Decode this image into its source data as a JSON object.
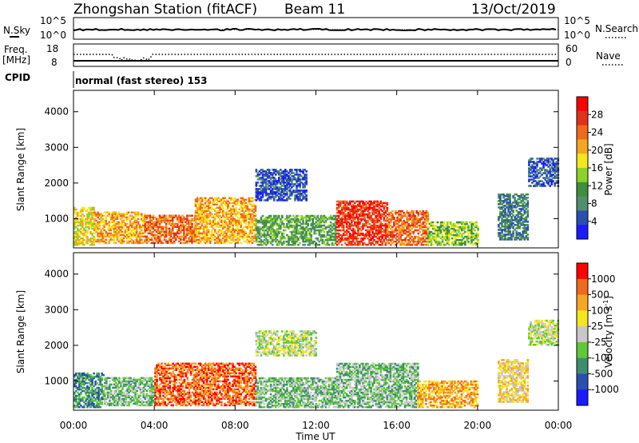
{
  "header": {
    "title": "Zhongshan Station (fitACF)",
    "beam": "Beam 11",
    "date": "13/Oct/2019"
  },
  "status_panels": {
    "nsky_label": "N.Sky",
    "nsky_ticks": [
      "10^5",
      "10^0"
    ],
    "nsearch_label": "N.Search",
    "nsearch_ticks": [
      "10^5",
      "10^0"
    ],
    "freq_label_1": "Freq.",
    "freq_label_2": "[MHz]",
    "freq_ticks": [
      "18",
      "8"
    ],
    "nave_label": "Nave",
    "nave_ticks": [
      "60",
      "0"
    ],
    "cpid_label": "CPID",
    "cpid_text": "normal (fast stereo) 153"
  },
  "chart_data": [
    {
      "type": "heatmap",
      "name": "power",
      "ylabel": "Slant Range [km]",
      "xlabel": "",
      "ylim": [
        180,
        4600
      ],
      "xlim": [
        0,
        24
      ],
      "yticks": [
        "1000",
        "2000",
        "3000",
        "4000"
      ],
      "ytick_values": [
        1000,
        2000,
        3000,
        4000
      ],
      "colorbar": {
        "label": "Power [dB]",
        "ticks": [
          "4",
          "8",
          "12",
          "16",
          "20",
          "24",
          "28"
        ],
        "colors": [
          "#1a1aff",
          "#2a4fb0",
          "#4f8f6e",
          "#3e8e3e",
          "#8bd22a",
          "#f5e61e",
          "#f5a623",
          "#ef6a1a",
          "#e0321a",
          "#ff0000"
        ]
      },
      "regions": [
        {
          "t0": 0.0,
          "t1": 1.0,
          "r0": 250,
          "r1": 1300,
          "level": 5
        },
        {
          "t0": 1.0,
          "t1": 3.5,
          "r0": 300,
          "r1": 1200,
          "level": 6
        },
        {
          "t0": 3.5,
          "t1": 6.0,
          "r0": 300,
          "r1": 1100,
          "level": 7
        },
        {
          "t0": 6.0,
          "t1": 9.0,
          "r0": 300,
          "r1": 1600,
          "level": 6
        },
        {
          "t0": 9.0,
          "t1": 11.5,
          "r0": 1500,
          "r1": 2400,
          "level": 1
        },
        {
          "t0": 9.0,
          "t1": 13.0,
          "r0": 250,
          "r1": 1100,
          "level": 3
        },
        {
          "t0": 13.0,
          "t1": 15.5,
          "r0": 250,
          "r1": 1500,
          "level": 8
        },
        {
          "t0": 15.5,
          "t1": 17.5,
          "r0": 250,
          "r1": 1200,
          "level": 7
        },
        {
          "t0": 17.5,
          "t1": 20.0,
          "r0": 250,
          "r1": 900,
          "level": 4
        },
        {
          "t0": 21.0,
          "t1": 22.5,
          "r0": 400,
          "r1": 1700,
          "level": 2
        },
        {
          "t0": 22.5,
          "t1": 24.0,
          "r0": 1900,
          "r1": 2700,
          "level": 1
        }
      ]
    },
    {
      "type": "heatmap",
      "name": "velocity",
      "ylabel": "Slant Range [km]",
      "xlabel": "Time UT",
      "ylim": [
        180,
        4600
      ],
      "xlim": [
        0,
        24
      ],
      "yticks": [
        "1000",
        "2000",
        "3000",
        "4000"
      ],
      "ytick_values": [
        1000,
        2000,
        3000,
        4000
      ],
      "xticks": [
        "00:00",
        "04:00",
        "08:00",
        "12:00",
        "16:00",
        "20:00",
        "00:00"
      ],
      "xtick_values": [
        0,
        4,
        8,
        12,
        16,
        20,
        24
      ],
      "colorbar": {
        "label": "Velocity [m s^-1]",
        "ticks": [
          "1000",
          "500",
          "100",
          "25",
          "-25",
          "-100",
          "-500",
          "-1000"
        ],
        "colors": [
          "#1a1aff",
          "#2a4fb0",
          "#3e8e6e",
          "#5fc83a",
          "#c8c8c8",
          "#f5e61e",
          "#f5a623",
          "#ef6a1a",
          "#ff0000"
        ]
      },
      "regions": [
        {
          "t0": 0.0,
          "t1": 1.5,
          "r0": 250,
          "r1": 1200,
          "level": 2
        },
        {
          "t0": 1.5,
          "t1": 4.0,
          "r0": 300,
          "r1": 1100,
          "level": 3
        },
        {
          "t0": 4.0,
          "t1": 9.0,
          "r0": 300,
          "r1": 1500,
          "level": 7
        },
        {
          "t0": 9.0,
          "t1": 12.0,
          "r0": 1700,
          "r1": 2400,
          "level": 4
        },
        {
          "t0": 9.0,
          "t1": 13.0,
          "r0": 250,
          "r1": 1100,
          "level": 3
        },
        {
          "t0": 13.0,
          "t1": 17.0,
          "r0": 250,
          "r1": 1500,
          "level": 3
        },
        {
          "t0": 17.0,
          "t1": 20.0,
          "r0": 250,
          "r1": 1000,
          "level": 6
        },
        {
          "t0": 21.0,
          "t1": 22.5,
          "r0": 400,
          "r1": 1600,
          "level": 5
        },
        {
          "t0": 22.5,
          "t1": 24.0,
          "r0": 2000,
          "r1": 2700,
          "level": 4
        }
      ]
    }
  ]
}
